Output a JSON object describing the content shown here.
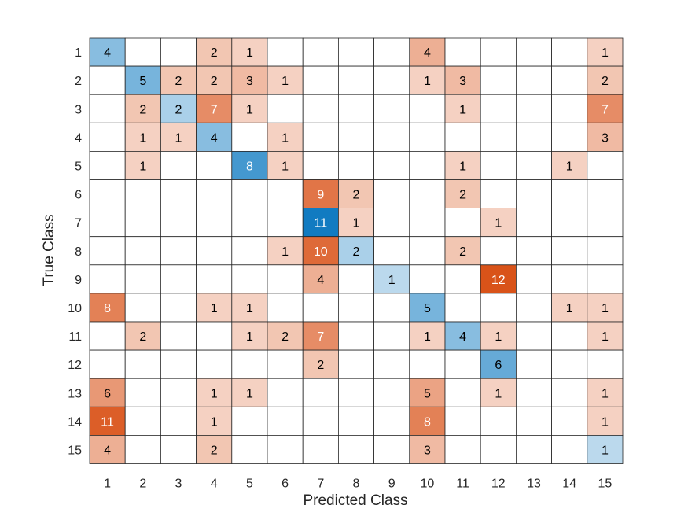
{
  "chart_data": {
    "type": "heatmap",
    "title": "",
    "xlabel": "Predicted Class",
    "ylabel": "True Class",
    "classes": [
      "1",
      "2",
      "3",
      "4",
      "5",
      "6",
      "7",
      "8",
      "9",
      "10",
      "11",
      "12",
      "13",
      "14",
      "15"
    ],
    "matrix": [
      [
        4,
        0,
        0,
        2,
        1,
        0,
        0,
        0,
        0,
        4,
        0,
        0,
        0,
        0,
        1
      ],
      [
        0,
        5,
        2,
        2,
        3,
        1,
        0,
        0,
        0,
        1,
        3,
        0,
        0,
        0,
        2
      ],
      [
        0,
        2,
        2,
        7,
        1,
        0,
        0,
        0,
        0,
        0,
        1,
        0,
        0,
        0,
        7
      ],
      [
        0,
        1,
        1,
        4,
        0,
        1,
        0,
        0,
        0,
        0,
        0,
        0,
        0,
        0,
        3
      ],
      [
        0,
        1,
        0,
        0,
        8,
        1,
        0,
        0,
        0,
        0,
        1,
        0,
        0,
        1,
        0
      ],
      [
        0,
        0,
        0,
        0,
        0,
        0,
        9,
        2,
        0,
        0,
        2,
        0,
        0,
        0,
        0
      ],
      [
        0,
        0,
        0,
        0,
        0,
        0,
        11,
        1,
        0,
        0,
        0,
        1,
        0,
        0,
        0
      ],
      [
        0,
        0,
        0,
        0,
        0,
        1,
        10,
        2,
        0,
        0,
        2,
        0,
        0,
        0,
        0
      ],
      [
        0,
        0,
        0,
        0,
        0,
        0,
        4,
        0,
        1,
        0,
        0,
        12,
        0,
        0,
        0
      ],
      [
        8,
        0,
        0,
        1,
        1,
        0,
        0,
        0,
        0,
        5,
        0,
        0,
        0,
        1,
        1
      ],
      [
        0,
        2,
        0,
        0,
        1,
        2,
        7,
        0,
        0,
        1,
        4,
        1,
        0,
        0,
        1
      ],
      [
        0,
        0,
        0,
        0,
        0,
        0,
        2,
        0,
        0,
        0,
        0,
        6,
        0,
        0,
        0
      ],
      [
        6,
        0,
        0,
        1,
        1,
        0,
        0,
        0,
        0,
        5,
        0,
        1,
        0,
        0,
        1
      ],
      [
        11,
        0,
        0,
        1,
        0,
        0,
        0,
        0,
        0,
        8,
        0,
        0,
        0,
        0,
        1
      ],
      [
        4,
        0,
        0,
        2,
        0,
        0,
        0,
        0,
        0,
        3,
        0,
        0,
        0,
        0,
        1
      ]
    ],
    "colors": {
      "diagonal_max": "#0072BD",
      "off_diagonal_max": "#D95319",
      "empty": "#ffffff",
      "grid": "#262626",
      "text_dark": "#000000",
      "text_light": "#ffffff"
    },
    "grid": true
  }
}
